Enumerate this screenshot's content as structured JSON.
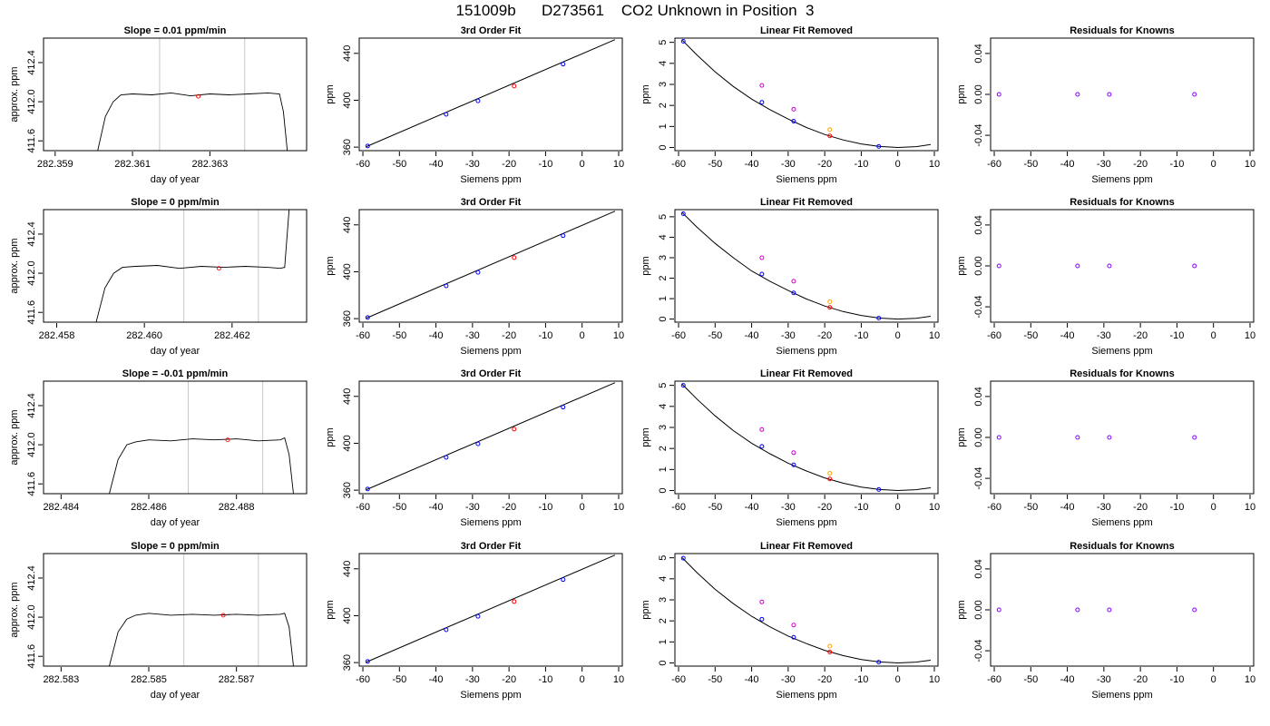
{
  "page": {
    "title": "151009b      D273561    CO2 Unknown in Position  3"
  },
  "chart_data": [
    {
      "type": "line",
      "title": "Slope =  0.01  ppm/min",
      "xlabel": "day of year",
      "ylabel": "approx. ppm",
      "xlim": [
        282.3587,
        282.3655
      ],
      "ylim": [
        411.5,
        412.65
      ],
      "xticks": [
        "282.359",
        "282.361",
        "282.363"
      ],
      "yticks": [
        "411.6",
        "412.0",
        "412.4"
      ],
      "vlines": [
        282.3617,
        282.3639
      ],
      "highlight": {
        "x": 282.3627,
        "y": 412.055
      },
      "x": [
        282.3601,
        282.3603,
        282.3605,
        282.3607,
        282.361,
        282.3615,
        282.362,
        282.3625,
        282.363,
        282.3635,
        282.364,
        282.3645,
        282.3648,
        282.3649,
        282.365
      ],
      "y": [
        411.5,
        411.85,
        412.0,
        412.07,
        412.08,
        412.07,
        412.09,
        412.06,
        412.08,
        412.07,
        412.08,
        412.09,
        412.08,
        411.9,
        411.5
      ]
    },
    {
      "type": "scatter",
      "title": "3rd Order Fit",
      "xlabel": "Siemens ppm",
      "ylabel": "ppm",
      "xlim": [
        -61,
        11
      ],
      "ylim": [
        357,
        453
      ],
      "xticks": [
        "-60",
        "-50",
        "-40",
        "-30",
        "-20",
        "-10",
        "0",
        "10"
      ],
      "yticks": [
        "360",
        "400",
        "440"
      ],
      "line": {
        "x": [
          -59,
          9
        ],
        "y": [
          360.5,
          451.7
        ]
      },
      "points": [
        {
          "x": -58.7,
          "y": 361.0,
          "color": "#0000ff"
        },
        {
          "x": -37.2,
          "y": 388.0,
          "color": "#0000ff"
        },
        {
          "x": -28.5,
          "y": 399.5,
          "color": "#0000ff"
        },
        {
          "x": -18.6,
          "y": 412.06,
          "color": "#ff0000"
        },
        {
          "x": -5.2,
          "y": 430.8,
          "color": "#0000ff"
        }
      ]
    },
    {
      "type": "scatter",
      "title": "Linear Fit Removed",
      "xlabel": "Siemens ppm",
      "ylabel": "ppm",
      "xlim": [
        -61,
        11
      ],
      "ylim": [
        -0.15,
        5.2
      ],
      "xticks": [
        "-60",
        "-50",
        "-40",
        "-30",
        "-20",
        "-10",
        "0",
        "10"
      ],
      "yticks": [
        "0",
        "1",
        "2",
        "3",
        "4",
        "5"
      ],
      "curve": {
        "x": [
          -59,
          -55,
          -50,
          -45,
          -40,
          -35,
          -30,
          -25,
          -20,
          -15,
          -10,
          -5,
          0,
          5,
          9
        ],
        "y": [
          5.1,
          4.4,
          3.6,
          2.9,
          2.3,
          1.8,
          1.35,
          0.95,
          0.62,
          0.36,
          0.17,
          0.05,
          0.0,
          0.04,
          0.14
        ]
      },
      "points": [
        {
          "x": -58.7,
          "y": 5.05,
          "color": "#0000ff"
        },
        {
          "x": -37.2,
          "y": 2.95,
          "color": "#cc00cc"
        },
        {
          "x": -37.2,
          "y": 2.15,
          "color": "#0000ff"
        },
        {
          "x": -28.5,
          "y": 1.82,
          "color": "#cc00cc"
        },
        {
          "x": -28.5,
          "y": 1.25,
          "color": "#0000ff"
        },
        {
          "x": -18.6,
          "y": 0.85,
          "color": "#ffa500"
        },
        {
          "x": -18.6,
          "y": 0.55,
          "color": "#ff0000"
        },
        {
          "x": -5.2,
          "y": 0.05,
          "color": "#0000ff"
        }
      ]
    },
    {
      "type": "scatter",
      "title": "Residuals for Knowns",
      "xlabel": "Siemens ppm",
      "ylabel": "ppm",
      "xlim": [
        -61,
        11
      ],
      "ylim": [
        -0.055,
        0.055
      ],
      "xticks": [
        "-60",
        "-50",
        "-40",
        "-30",
        "-20",
        "-10",
        "0",
        "10"
      ],
      "yticks": [
        "-0.04",
        "0.00",
        "0.04"
      ],
      "points": [
        {
          "x": -58.7,
          "y": 0,
          "color": "#8800ff"
        },
        {
          "x": -37.2,
          "y": 0,
          "color": "#8800ff"
        },
        {
          "x": -28.5,
          "y": 0,
          "color": "#8800ff"
        },
        {
          "x": -5.2,
          "y": 0,
          "color": "#8800ff"
        }
      ]
    },
    {
      "type": "line",
      "title": "Slope =  0  ppm/min",
      "xlabel": "day of year",
      "ylabel": "approx. ppm",
      "xlim": [
        282.4577,
        282.4637
      ],
      "ylim": [
        411.5,
        412.65
      ],
      "xticks": [
        "282.458",
        "282.460",
        "282.462"
      ],
      "yticks": [
        "411.6",
        "412.0",
        "412.4"
      ],
      "vlines": [
        282.4609,
        282.4626
      ],
      "highlight": {
        "x": 282.4617,
        "y": 412.05
      },
      "x": [
        282.4589,
        282.4591,
        282.4593,
        282.4595,
        282.4598,
        282.4603,
        282.4608,
        282.4613,
        282.4618,
        282.4623,
        282.4628,
        282.4631,
        282.4632,
        282.4633
      ],
      "y": [
        411.5,
        411.85,
        412.0,
        412.06,
        412.07,
        412.08,
        412.05,
        412.07,
        412.06,
        412.07,
        412.06,
        412.05,
        412.06,
        412.65
      ]
    },
    {
      "type": "scatter",
      "title": "3rd Order Fit",
      "xlabel": "Siemens ppm",
      "ylabel": "ppm",
      "xlim": [
        -61,
        11
      ],
      "ylim": [
        357,
        453
      ],
      "xticks": [
        "-60",
        "-50",
        "-40",
        "-30",
        "-20",
        "-10",
        "0",
        "10"
      ],
      "yticks": [
        "360",
        "400",
        "440"
      ],
      "line": {
        "x": [
          -59,
          9
        ],
        "y": [
          360.5,
          451.7
        ]
      },
      "points": [
        {
          "x": -58.7,
          "y": 361.0,
          "color": "#0000ff"
        },
        {
          "x": -37.2,
          "y": 388.0,
          "color": "#0000ff"
        },
        {
          "x": -28.5,
          "y": 399.5,
          "color": "#0000ff"
        },
        {
          "x": -18.6,
          "y": 412.05,
          "color": "#ff0000"
        },
        {
          "x": -5.2,
          "y": 430.8,
          "color": "#0000ff"
        }
      ]
    },
    {
      "type": "scatter",
      "title": "Linear Fit Removed",
      "xlabel": "Siemens ppm",
      "ylabel": "ppm",
      "xlim": [
        -61,
        11
      ],
      "ylim": [
        -0.15,
        5.35
      ],
      "xticks": [
        "-60",
        "-50",
        "-40",
        "-30",
        "-20",
        "-10",
        "0",
        "10"
      ],
      "yticks": [
        "0",
        "1",
        "2",
        "3",
        "4",
        "5"
      ],
      "curve": {
        "x": [
          -59,
          -55,
          -50,
          -45,
          -40,
          -35,
          -30,
          -25,
          -20,
          -15,
          -10,
          -5,
          0,
          5,
          9
        ],
        "y": [
          5.2,
          4.5,
          3.7,
          3.0,
          2.35,
          1.85,
          1.4,
          0.98,
          0.64,
          0.37,
          0.18,
          0.05,
          0.0,
          0.04,
          0.14
        ]
      },
      "points": [
        {
          "x": -58.7,
          "y": 5.15,
          "color": "#0000ff"
        },
        {
          "x": -37.2,
          "y": 3.0,
          "color": "#cc00cc"
        },
        {
          "x": -37.2,
          "y": 2.2,
          "color": "#0000ff"
        },
        {
          "x": -28.5,
          "y": 1.85,
          "color": "#cc00cc"
        },
        {
          "x": -28.5,
          "y": 1.28,
          "color": "#0000ff"
        },
        {
          "x": -18.6,
          "y": 0.85,
          "color": "#ffa500"
        },
        {
          "x": -18.6,
          "y": 0.57,
          "color": "#ff0000"
        },
        {
          "x": -5.2,
          "y": 0.05,
          "color": "#0000ff"
        }
      ]
    },
    {
      "type": "scatter",
      "title": "Residuals for Knowns",
      "xlabel": "Siemens ppm",
      "ylabel": "ppm",
      "xlim": [
        -61,
        11
      ],
      "ylim": [
        -0.055,
        0.055
      ],
      "xticks": [
        "-60",
        "-50",
        "-40",
        "-30",
        "-20",
        "-10",
        "0",
        "10"
      ],
      "yticks": [
        "-0.04",
        "0.00",
        "0.04"
      ],
      "points": [
        {
          "x": -58.7,
          "y": 0,
          "color": "#8800ff"
        },
        {
          "x": -37.2,
          "y": 0,
          "color": "#8800ff"
        },
        {
          "x": -28.5,
          "y": 0,
          "color": "#8800ff"
        },
        {
          "x": -5.2,
          "y": 0,
          "color": "#8800ff"
        }
      ]
    },
    {
      "type": "line",
      "title": "Slope =  -0.01  ppm/min",
      "xlabel": "day of year",
      "ylabel": "approx. ppm",
      "xlim": [
        282.4836,
        282.4896
      ],
      "ylim": [
        411.5,
        412.65
      ],
      "xticks": [
        "282.484",
        "282.486",
        "282.488"
      ],
      "yticks": [
        "411.6",
        "412.0",
        "412.4"
      ],
      "vlines": [
        282.4869,
        282.4886
      ],
      "highlight": {
        "x": 282.4878,
        "y": 412.05
      },
      "x": [
        282.4851,
        282.4853,
        282.4855,
        282.4857,
        282.486,
        282.4865,
        282.487,
        282.4875,
        282.488,
        282.4885,
        282.489,
        282.4891,
        282.4892,
        282.4893
      ],
      "y": [
        411.5,
        411.85,
        412.0,
        412.03,
        412.05,
        412.04,
        412.06,
        412.05,
        412.06,
        412.04,
        412.05,
        412.07,
        411.9,
        411.5
      ]
    },
    {
      "type": "scatter",
      "title": "3rd Order Fit",
      "xlabel": "Siemens ppm",
      "ylabel": "ppm",
      "xlim": [
        -61,
        11
      ],
      "ylim": [
        357,
        453
      ],
      "xticks": [
        "-60",
        "-50",
        "-40",
        "-30",
        "-20",
        "-10",
        "0",
        "10"
      ],
      "yticks": [
        "360",
        "400",
        "440"
      ],
      "line": {
        "x": [
          -59,
          9
        ],
        "y": [
          360.5,
          451.7
        ]
      },
      "points": [
        {
          "x": -58.7,
          "y": 361.0,
          "color": "#0000ff"
        },
        {
          "x": -37.2,
          "y": 388.0,
          "color": "#0000ff"
        },
        {
          "x": -28.5,
          "y": 399.5,
          "color": "#0000ff"
        },
        {
          "x": -18.6,
          "y": 412.05,
          "color": "#ff0000"
        },
        {
          "x": -5.2,
          "y": 430.8,
          "color": "#0000ff"
        }
      ]
    },
    {
      "type": "scatter",
      "title": "Linear Fit Removed",
      "xlabel": "Siemens ppm",
      "ylabel": "ppm",
      "xlim": [
        -61,
        11
      ],
      "ylim": [
        -0.15,
        5.2
      ],
      "xticks": [
        "-60",
        "-50",
        "-40",
        "-30",
        "-20",
        "-10",
        "0",
        "10"
      ],
      "yticks": [
        "0",
        "1",
        "2",
        "3",
        "4",
        "5"
      ],
      "curve": {
        "x": [
          -59,
          -55,
          -50,
          -45,
          -40,
          -35,
          -30,
          -25,
          -20,
          -15,
          -10,
          -5,
          0,
          5,
          9
        ],
        "y": [
          5.05,
          4.35,
          3.55,
          2.85,
          2.25,
          1.75,
          1.3,
          0.93,
          0.6,
          0.35,
          0.16,
          0.05,
          0.0,
          0.04,
          0.13
        ]
      },
      "points": [
        {
          "x": -58.7,
          "y": 5.0,
          "color": "#0000ff"
        },
        {
          "x": -37.2,
          "y": 2.9,
          "color": "#cc00cc"
        },
        {
          "x": -37.2,
          "y": 2.1,
          "color": "#0000ff"
        },
        {
          "x": -28.5,
          "y": 1.8,
          "color": "#cc00cc"
        },
        {
          "x": -28.5,
          "y": 1.22,
          "color": "#0000ff"
        },
        {
          "x": -18.6,
          "y": 0.82,
          "color": "#ffa500"
        },
        {
          "x": -18.6,
          "y": 0.55,
          "color": "#ff0000"
        },
        {
          "x": -5.2,
          "y": 0.05,
          "color": "#0000ff"
        }
      ]
    },
    {
      "type": "scatter",
      "title": "Residuals for Knowns",
      "xlabel": "Siemens ppm",
      "ylabel": "ppm",
      "xlim": [
        -61,
        11
      ],
      "ylim": [
        -0.055,
        0.055
      ],
      "xticks": [
        "-60",
        "-50",
        "-40",
        "-30",
        "-20",
        "-10",
        "0",
        "10"
      ],
      "yticks": [
        "-0.04",
        "0.00",
        "0.04"
      ],
      "points": [
        {
          "x": -58.7,
          "y": 0,
          "color": "#8800ff"
        },
        {
          "x": -37.2,
          "y": 0,
          "color": "#8800ff"
        },
        {
          "x": -28.5,
          "y": 0,
          "color": "#8800ff"
        },
        {
          "x": -5.2,
          "y": 0,
          "color": "#8800ff"
        }
      ]
    },
    {
      "type": "line",
      "title": "Slope =  0  ppm/min",
      "xlabel": "day of year",
      "ylabel": "approx. ppm",
      "xlim": [
        282.5826,
        282.5886
      ],
      "ylim": [
        411.5,
        412.65
      ],
      "xticks": [
        "282.583",
        "282.585",
        "282.587"
      ],
      "yticks": [
        "411.6",
        "412.0",
        "412.4"
      ],
      "vlines": [
        282.5858,
        282.5875
      ],
      "highlight": {
        "x": 282.5867,
        "y": 412.02
      },
      "x": [
        282.5841,
        282.5843,
        282.5845,
        282.5847,
        282.585,
        282.5855,
        282.586,
        282.5865,
        282.587,
        282.5875,
        282.588,
        282.5881,
        282.5882,
        282.5883
      ],
      "y": [
        411.5,
        411.85,
        411.98,
        412.02,
        412.04,
        412.02,
        412.03,
        412.02,
        412.03,
        412.02,
        412.03,
        412.04,
        411.9,
        411.5
      ]
    },
    {
      "type": "scatter",
      "title": "3rd Order Fit",
      "xlabel": "Siemens ppm",
      "ylabel": "ppm",
      "xlim": [
        -61,
        11
      ],
      "ylim": [
        357,
        453
      ],
      "xticks": [
        "-60",
        "-50",
        "-40",
        "-30",
        "-20",
        "-10",
        "0",
        "10"
      ],
      "yticks": [
        "360",
        "400",
        "440"
      ],
      "line": {
        "x": [
          -59,
          9
        ],
        "y": [
          360.5,
          451.7
        ]
      },
      "points": [
        {
          "x": -58.7,
          "y": 361.0,
          "color": "#0000ff"
        },
        {
          "x": -37.2,
          "y": 388.0,
          "color": "#0000ff"
        },
        {
          "x": -28.5,
          "y": 399.5,
          "color": "#0000ff"
        },
        {
          "x": -18.6,
          "y": 412.02,
          "color": "#ff0000"
        },
        {
          "x": -5.2,
          "y": 430.8,
          "color": "#0000ff"
        }
      ]
    },
    {
      "type": "scatter",
      "title": "Linear Fit Removed",
      "xlabel": "Siemens ppm",
      "ylabel": "ppm",
      "xlim": [
        -61,
        11
      ],
      "ylim": [
        -0.15,
        5.2
      ],
      "xticks": [
        "-60",
        "-50",
        "-40",
        "-30",
        "-20",
        "-10",
        "0",
        "10"
      ],
      "yticks": [
        "0",
        "1",
        "2",
        "3",
        "4",
        "5"
      ],
      "curve": {
        "x": [
          -59,
          -55,
          -50,
          -45,
          -40,
          -35,
          -30,
          -25,
          -20,
          -15,
          -10,
          -5,
          0,
          5,
          9
        ],
        "y": [
          5.0,
          4.3,
          3.5,
          2.82,
          2.22,
          1.72,
          1.28,
          0.92,
          0.6,
          0.35,
          0.16,
          0.05,
          0.0,
          0.04,
          0.13
        ]
      },
      "points": [
        {
          "x": -58.7,
          "y": 4.98,
          "color": "#0000ff"
        },
        {
          "x": -37.2,
          "y": 2.9,
          "color": "#cc00cc"
        },
        {
          "x": -37.2,
          "y": 2.08,
          "color": "#0000ff"
        },
        {
          "x": -28.5,
          "y": 1.8,
          "color": "#cc00cc"
        },
        {
          "x": -28.5,
          "y": 1.22,
          "color": "#0000ff"
        },
        {
          "x": -18.6,
          "y": 0.8,
          "color": "#ffa500"
        },
        {
          "x": -18.6,
          "y": 0.52,
          "color": "#ff0000"
        },
        {
          "x": -5.2,
          "y": 0.04,
          "color": "#0000ff"
        }
      ]
    },
    {
      "type": "scatter",
      "title": "Residuals for Knowns",
      "xlabel": "Siemens ppm",
      "ylabel": "ppm",
      "xlim": [
        -61,
        11
      ],
      "ylim": [
        -0.055,
        0.055
      ],
      "xticks": [
        "-60",
        "-50",
        "-40",
        "-30",
        "-20",
        "-10",
        "0",
        "10"
      ],
      "yticks": [
        "-0.04",
        "0.00",
        "0.04"
      ],
      "points": [
        {
          "x": -58.7,
          "y": 0,
          "color": "#8800ff"
        },
        {
          "x": -37.2,
          "y": 0,
          "color": "#8800ff"
        },
        {
          "x": -28.5,
          "y": 0,
          "color": "#8800ff"
        },
        {
          "x": -5.2,
          "y": 0,
          "color": "#8800ff"
        }
      ]
    }
  ]
}
